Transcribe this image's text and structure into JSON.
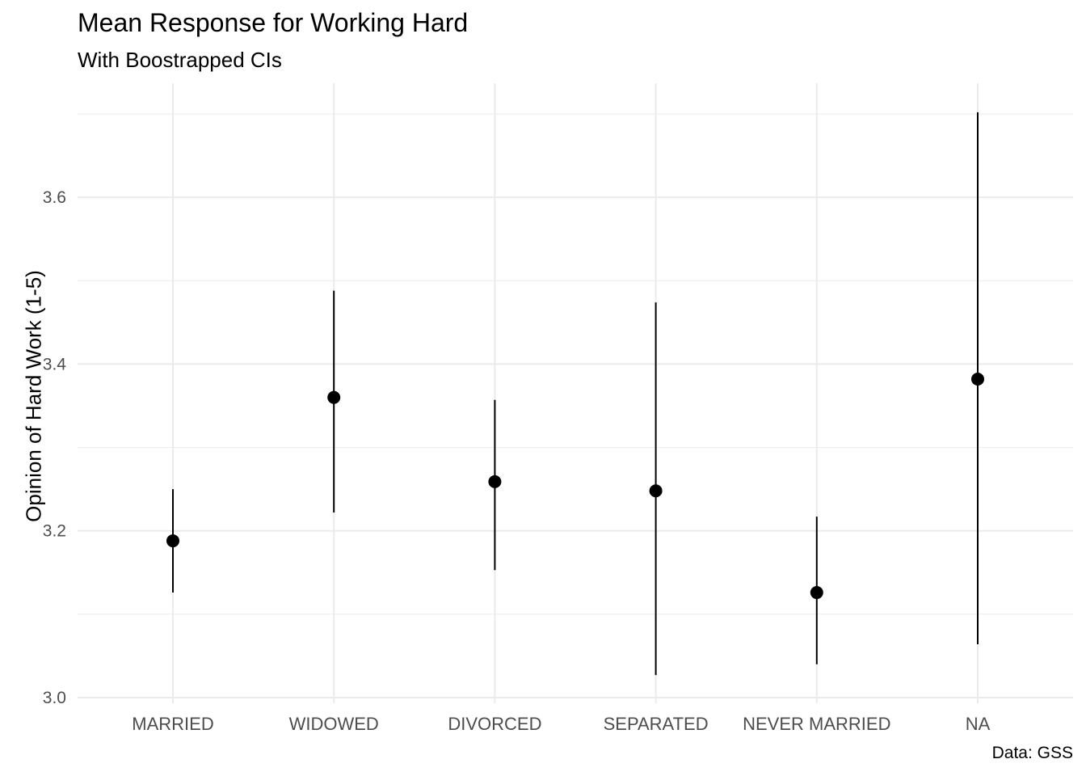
{
  "chart_data": {
    "type": "scatter",
    "title": "Mean Response for Working Hard",
    "subtitle": "With Boostrapped CIs",
    "ylabel": "Opinion of Hard Work (1-5)",
    "xlabel": "",
    "caption": "Data: GSS",
    "categories": [
      "MARRIED",
      "WIDOWED",
      "DIVORCED",
      "SEPARATED",
      "NEVER MARRIED",
      "NA"
    ],
    "mean": [
      3.188,
      3.36,
      3.259,
      3.248,
      3.126,
      3.382
    ],
    "ci_lower": [
      3.126,
      3.222,
      3.153,
      3.027,
      3.04,
      3.064
    ],
    "ci_upper": [
      3.25,
      3.488,
      3.357,
      3.474,
      3.217,
      3.702
    ],
    "ylim": [
      2.99,
      3.735
    ],
    "yticks": [
      3.0,
      3.2,
      3.4,
      3.6
    ],
    "ytick_labels": [
      "3.0",
      "3.2",
      "3.4",
      "3.6"
    ],
    "grid": true,
    "colors": {
      "point": "#000000",
      "errorbar": "#000000",
      "grid": "#ebebeb",
      "tick_text": "#4d4d4d"
    }
  }
}
